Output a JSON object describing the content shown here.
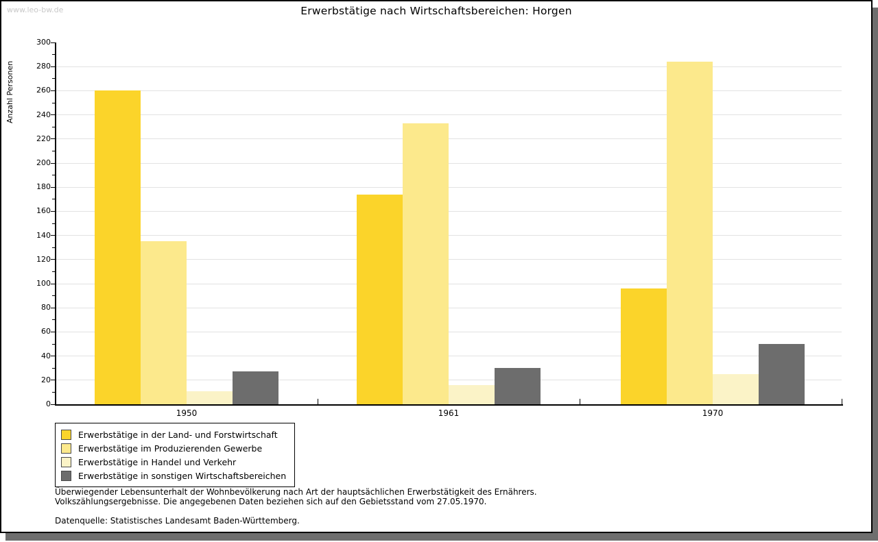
{
  "watermark": "www.leo-bw.de",
  "title": "Erwerbstätige nach Wirtschaftsbereichen: Horgen",
  "chart_data": {
    "type": "bar",
    "title": "Erwerbstätige nach Wirtschaftsbereichen: Horgen",
    "xlabel": "",
    "ylabel": "Anzahl Personen",
    "ylim": [
      0,
      300
    ],
    "ytick_step": 20,
    "yticks": [
      0,
      20,
      40,
      60,
      80,
      100,
      120,
      140,
      160,
      180,
      200,
      220,
      240,
      260,
      280,
      300
    ],
    "minor_tick_step": 10,
    "grid": "horizontal",
    "gridline_color": "#E2E2E2",
    "legend_position": "bottom-left",
    "categories": [
      "1950",
      "1961",
      "1970"
    ],
    "series": [
      {
        "name": "Erwerbstätige in der Land- und Forstwirtschaft",
        "color": "#FBD42A",
        "values": [
          260,
          174,
          96
        ]
      },
      {
        "name": "Erwerbstätige im Produzierenden Gewerbe",
        "color": "#FCE98C",
        "values": [
          135,
          233,
          284
        ]
      },
      {
        "name": "Erwerbstätige in Handel und Verkehr",
        "color": "#FBF3C7",
        "values": [
          11,
          16,
          25
        ]
      },
      {
        "name": "Erwerbstätige in sonstigen Wirtschaftsbereichen",
        "color": "#6D6D6D",
        "values": [
          27,
          30,
          50
        ]
      }
    ]
  },
  "footnotes": {
    "line1": "Überwiegender Lebensunterhalt der Wohnbevölkerung nach Art der hauptsächlichen Erwerbstätigkeit des Ernährers.",
    "line2": "Volkszählungsergebnisse. Die angegebenen Daten beziehen sich auf den Gebietsstand vom 27.05.1970.",
    "source": "Datenquelle: Statistisches Landesamt Baden-Württemberg."
  }
}
